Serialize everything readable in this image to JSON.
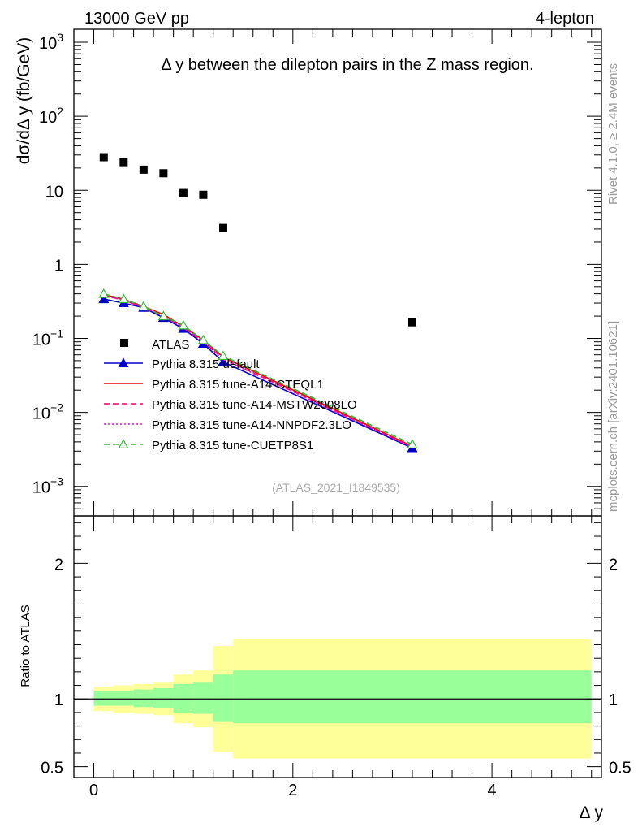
{
  "header": {
    "left": "13000 GeV pp",
    "right": "4-lepton"
  },
  "side": {
    "rivet": "Rivet 4.1.0, ≥ 2.4M events",
    "mcplots": "mcplots.cern.ch [arXiv:2401.10621]"
  },
  "chart_data": [
    {
      "type": "scatter",
      "panel": "main",
      "title": "Δ y between the dilepton pairs in the Z mass region.",
      "ylabel": "dσ/dΔ y (fb/GeV)",
      "xlabel": "Δ y",
      "yscale": "log",
      "xlim": [
        -0.2,
        5.1
      ],
      "ylim": [
        0.0004,
        1500
      ],
      "watermark": "(ATLAS_2021_I1849535)",
      "yticklabels": [
        {
          "v": 1000,
          "base": "10",
          "exp": "3"
        },
        {
          "v": 100,
          "base": "10",
          "exp": "2"
        },
        {
          "v": 10,
          "base": "10",
          "exp": ""
        },
        {
          "v": 1,
          "base": "1",
          "exp": ""
        },
        {
          "v": 0.1,
          "base": "10",
          "exp": "−1"
        },
        {
          "v": 0.01,
          "base": "10",
          "exp": "−2"
        },
        {
          "v": 0.001,
          "base": "10",
          "exp": "−3"
        }
      ],
      "data": {
        "name": "ATLAS",
        "x": [
          0.1,
          0.3,
          0.5,
          0.7,
          0.9,
          1.1,
          1.3,
          3.2
        ],
        "y": [
          28,
          24,
          19,
          17,
          9.2,
          8.7,
          3.1,
          0.165
        ]
      },
      "series": [
        {
          "name": "Pythia 8.315 default",
          "color": "#0000cc",
          "style": "solid",
          "marker": "triangle-filled",
          "x": [
            0.1,
            0.3,
            0.5,
            0.7,
            0.9,
            1.1,
            1.3,
            3.2
          ],
          "y": [
            0.34,
            0.3,
            0.26,
            0.19,
            0.135,
            0.085,
            0.048,
            0.0033
          ]
        },
        {
          "name": "Pythia 8.315 tune-A14-CTEQL1",
          "color": "#ee0000",
          "style": "solid",
          "marker": "none",
          "x": [
            0.1,
            0.3,
            0.5,
            0.7,
            0.9,
            1.1,
            1.3,
            3.2
          ],
          "y": [
            0.39,
            0.34,
            0.27,
            0.21,
            0.145,
            0.095,
            0.056,
            0.0035
          ]
        },
        {
          "name": "Pythia 8.315 tune-A14-MSTW2008LO",
          "color": "#ee0066",
          "style": "dashed",
          "marker": "none",
          "x": [
            0.1,
            0.3,
            0.5,
            0.7,
            0.9,
            1.1,
            1.3,
            3.2
          ],
          "y": [
            0.38,
            0.33,
            0.26,
            0.2,
            0.14,
            0.09,
            0.053,
            0.0034
          ]
        },
        {
          "name": "Pythia 8.315 tune-A14-NNPDF2.3LO",
          "color": "#ff00ff",
          "style": "dotted",
          "marker": "none",
          "x": [
            0.1,
            0.3,
            0.5,
            0.7,
            0.9,
            1.1,
            1.3,
            3.2
          ],
          "y": [
            0.375,
            0.33,
            0.265,
            0.2,
            0.14,
            0.09,
            0.052,
            0.0034
          ]
        },
        {
          "name": "Pythia 8.315 tune-CUETP8S1",
          "color": "#33bb33",
          "style": "dashed",
          "marker": "triangle-open",
          "x": [
            0.1,
            0.3,
            0.5,
            0.7,
            0.9,
            1.1,
            1.3,
            3.2
          ],
          "y": [
            0.4,
            0.34,
            0.27,
            0.2,
            0.15,
            0.095,
            0.058,
            0.0037
          ]
        }
      ]
    },
    {
      "type": "area",
      "panel": "ratio",
      "ylabel": "Ratio to ATLAS",
      "xlabel": "Δ y",
      "xlim": [
        -0.2,
        5.1
      ],
      "ylim": [
        0.42,
        2.35
      ],
      "xticklabels": [
        "0",
        "2",
        "4"
      ],
      "xticks": [
        0,
        2,
        4
      ],
      "yticklabels": [
        "0.5",
        "1",
        "2"
      ],
      "yticks": [
        0.5,
        1,
        2
      ],
      "reference": 1,
      "bins": [
        {
          "lo": 0.0,
          "hi": 0.2,
          "stat": [
            0.95,
            1.06
          ],
          "tot": [
            0.91,
            1.09
          ]
        },
        {
          "lo": 0.2,
          "hi": 0.4,
          "stat": [
            0.95,
            1.06
          ],
          "tot": [
            0.9,
            1.1
          ]
        },
        {
          "lo": 0.4,
          "hi": 0.6,
          "stat": [
            0.94,
            1.07
          ],
          "tot": [
            0.89,
            1.11
          ]
        },
        {
          "lo": 0.6,
          "hi": 0.8,
          "stat": [
            0.93,
            1.08
          ],
          "tot": [
            0.88,
            1.12
          ]
        },
        {
          "lo": 0.8,
          "hi": 1.0,
          "stat": [
            0.9,
            1.11
          ],
          "tot": [
            0.82,
            1.18
          ]
        },
        {
          "lo": 1.0,
          "hi": 1.2,
          "stat": [
            0.89,
            1.12
          ],
          "tot": [
            0.79,
            1.21
          ]
        },
        {
          "lo": 1.2,
          "hi": 1.4,
          "stat": [
            0.83,
            1.18
          ],
          "tot": [
            0.61,
            1.39
          ]
        },
        {
          "lo": 1.4,
          "hi": 5.0,
          "stat": [
            0.82,
            1.21
          ],
          "tot": [
            0.56,
            1.44
          ]
        }
      ]
    }
  ],
  "colors": {
    "stat_band": "#99ff99",
    "total_band": "#ffff99"
  }
}
